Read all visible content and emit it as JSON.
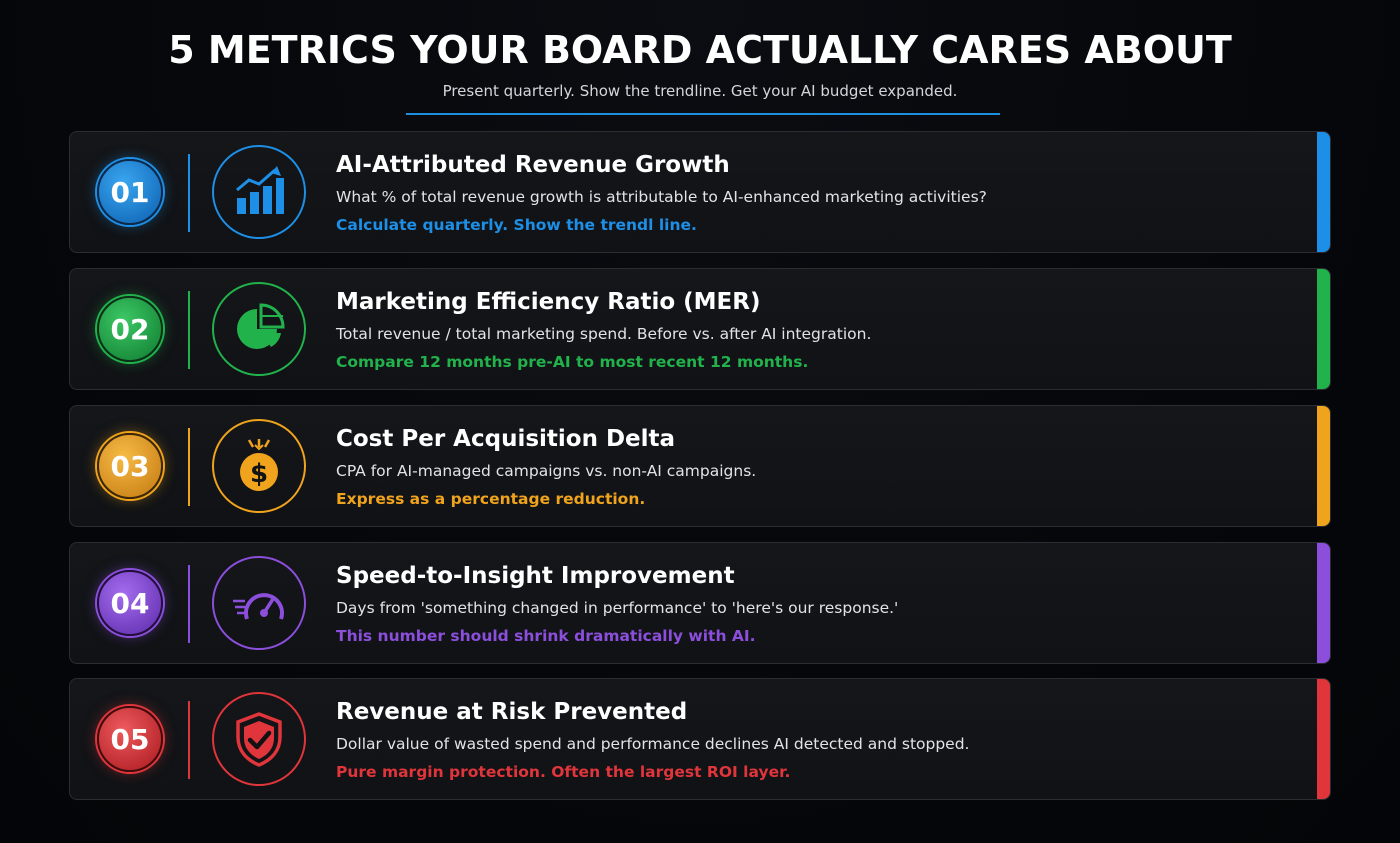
{
  "header": {
    "title": "5 METRICS YOUR BOARD ACTUALLY CARES ABOUT",
    "subtitle": "Present quarterly. Show the trendline. Get your AI budget expanded."
  },
  "metrics": [
    {
      "number": "01",
      "title": "AI-Attributed Revenue Growth",
      "description": "What % of total revenue growth is attributable to AI-enhanced marketing activities?",
      "note": "Calculate quarterly. Show the trendl line.",
      "color": "#1e8fe6",
      "icon": "growth-chart-icon"
    },
    {
      "number": "02",
      "title": "Marketing Efficiency Ratio (MER)",
      "description": "Total revenue / total marketing spend. Before vs. after AI integration.",
      "note": "Compare 12 months pre-AI to most recent 12 months.",
      "color": "#22b24c",
      "icon": "pie-chart-icon"
    },
    {
      "number": "03",
      "title": "Cost Per Acquisition Delta",
      "description": "CPA for AI-managed campaigns vs. non-AI campaigns.",
      "note": "Express as a percentage reduction.",
      "color": "#f0a31c",
      "icon": "dollar-coin-icon"
    },
    {
      "number": "04",
      "title": "Speed-to-Insight Improvement",
      "description": "Days from 'something changed in performance' to 'here's our response.'",
      "note": "This number should shrink dramatically with AI.",
      "color": "#8b4fdc",
      "icon": "speedometer-icon"
    },
    {
      "number": "05",
      "title": "Revenue at Risk Prevented",
      "description": "Dollar value of wasted spend and performance declines AI detected and stopped.",
      "note": "Pure margin protection. Often the largest ROI layer.",
      "color": "#e0353a",
      "icon": "shield-check-icon"
    }
  ]
}
